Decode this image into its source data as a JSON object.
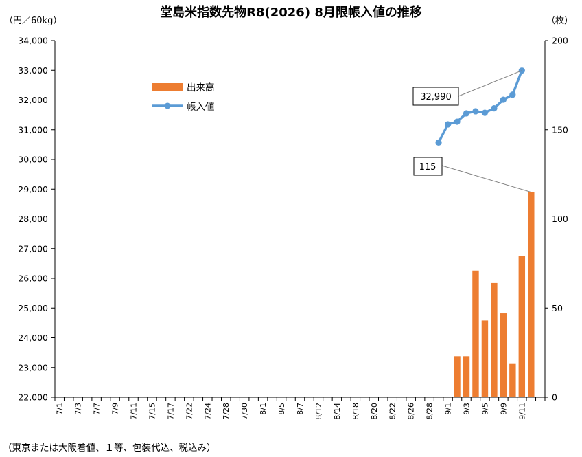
{
  "chart_data": {
    "type": "bar+line",
    "title": "堂島米指数先物R8(2026) 8月限帳入値の推移",
    "left_axis_unit": "（円／60kg）",
    "right_axis_unit": "（枚）",
    "footnote": "（東京または大阪着値、１等、包装代込、税込み）",
    "left_ylim": [
      22000,
      34000
    ],
    "left_ticks": [
      "22,000",
      "23,000",
      "24,000",
      "25,000",
      "26,000",
      "27,000",
      "28,000",
      "29,000",
      "30,000",
      "31,000",
      "32,000",
      "33,000",
      "34,000"
    ],
    "right_ylim": [
      0,
      200
    ],
    "right_ticks": [
      "0",
      "50",
      "100",
      "150",
      "200"
    ],
    "x_tick_labels": [
      "7/1",
      "7/3",
      "7/7",
      "7/9",
      "7/11",
      "7/15",
      "7/17",
      "7/22",
      "7/24",
      "7/28",
      "7/30",
      "8/1",
      "8/5",
      "8/7",
      "8/12",
      "8/14",
      "8/18",
      "8/20",
      "8/22",
      "8/26",
      "8/28",
      "9/1",
      "9/3",
      "9/5",
      "9/9",
      "9/11"
    ],
    "x_tick_slots": [
      0,
      2,
      4,
      6,
      8,
      10,
      12,
      14,
      16,
      18,
      20,
      22,
      24,
      26,
      28,
      30,
      32,
      34,
      36,
      38,
      40,
      42,
      44,
      46,
      48,
      50
    ],
    "slot_count": 53,
    "grid": false,
    "legend_placement": "upper-left inside plot",
    "series": [
      {
        "name": "出来高",
        "type": "bar",
        "axis": "right",
        "color": "#ed7d31",
        "x_slots": [
          41,
          42,
          43,
          44,
          45,
          46,
          47,
          48,
          49,
          50,
          51,
          52
        ],
        "values": [
          0,
          0,
          23,
          23,
          71,
          43,
          64,
          47,
          19,
          79,
          115,
          0
        ]
      },
      {
        "name": "帳入値",
        "type": "line",
        "axis": "left",
        "color": "#5b9bd5",
        "x_slots": [
          41,
          42,
          43,
          44,
          45,
          46,
          47,
          48,
          49,
          50,
          51,
          52
        ],
        "values": [
          30570,
          31180,
          31270,
          31550,
          31620,
          31570,
          31720,
          32010,
          32180,
          32990,
          0,
          0
        ]
      }
    ],
    "annotations": [
      {
        "text": "32,990",
        "target_series": "帳入値",
        "target_index": 9
      },
      {
        "text": "115",
        "target_series": "出来高",
        "target_index": 10
      }
    ]
  }
}
